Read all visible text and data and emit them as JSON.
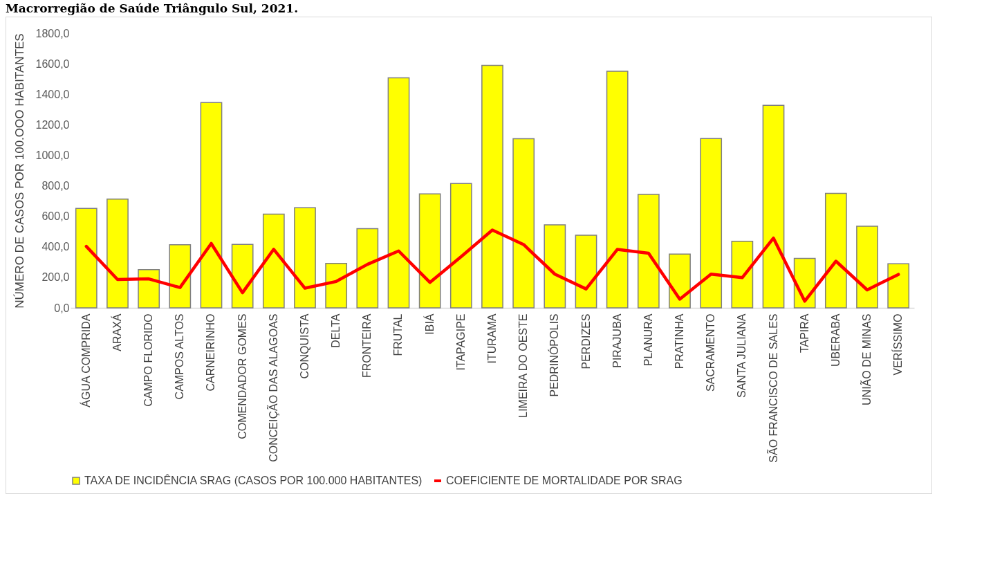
{
  "chart_data": {
    "type": "bar",
    "title": "Macrorregião de Saúde Triângulo Sul, 2021.",
    "ylabel": "NÚMERO DE CASOS POR 100.OOO HABITANTES",
    "categories": [
      "ÁGUA COMPRIDA",
      "ARAXÁ",
      "CAMPO FLORIDO",
      "CAMPOS ALTOS",
      "CARNEIRINHO",
      "COMENDADOR GOMES",
      "CONCEIÇÃO DAS ALAGOAS",
      "CONQUISTA",
      "DELTA",
      "FRONTEIRA",
      "FRUTAL",
      "IBIÁ",
      "ITAPAGIPE",
      "ITURAMA",
      "LIMEIRA DO OESTE",
      "PEDRINÓPOLIS",
      "PERDIZES",
      "PIRAJUBA",
      "PLANURA",
      "PRATINHA",
      "SACRAMENTO",
      "SANTA JULIANA",
      "SÃO FRANCISCO DE SALES",
      "TAPIRA",
      "UBERABA",
      "UNIÃO DE MINAS",
      "VERÍSSIMO"
    ],
    "series": [
      {
        "name": "TAXA DE INCIDÊNCIA SRAG  (CASOS POR 100.000 HABITANTES)",
        "color": "#ffff00",
        "values": [
          652,
          713,
          251,
          414,
          1346,
          416,
          614,
          656,
          291,
          519,
          1507,
          747,
          815,
          1589,
          1108,
          544,
          476,
          1551,
          744,
          352,
          1110,
          436,
          1327,
          324,
          750,
          535,
          289
        ]
      },
      {
        "name": "COEFICIENTE DE MORTALIDADE POR SRAG",
        "type": "line",
        "color": "#ff0000",
        "values": [
          403,
          186,
          190,
          133,
          422,
          99,
          384,
          129,
          173,
          285,
          373,
          167,
          335,
          510,
          415,
          221,
          124,
          383,
          358,
          57,
          221,
          198,
          457,
          44,
          306,
          118,
          219
        ]
      }
    ],
    "ylim": [
      0,
      1800
    ],
    "yticks": [
      {
        "value": 0,
        "label": "0,0"
      },
      {
        "value": 200,
        "label": "200,0"
      },
      {
        "value": 400,
        "label": "400,0"
      },
      {
        "value": 600,
        "label": "600,0"
      },
      {
        "value": 800,
        "label": "800,0"
      },
      {
        "value": 1000,
        "label": "1000,0"
      },
      {
        "value": 1200,
        "label": "1200,0"
      },
      {
        "value": 1400,
        "label": "1400,0"
      },
      {
        "value": 1600,
        "label": "1600,0"
      },
      {
        "value": 1800,
        "label": "1800,0"
      }
    ],
    "legend": "bottom"
  }
}
